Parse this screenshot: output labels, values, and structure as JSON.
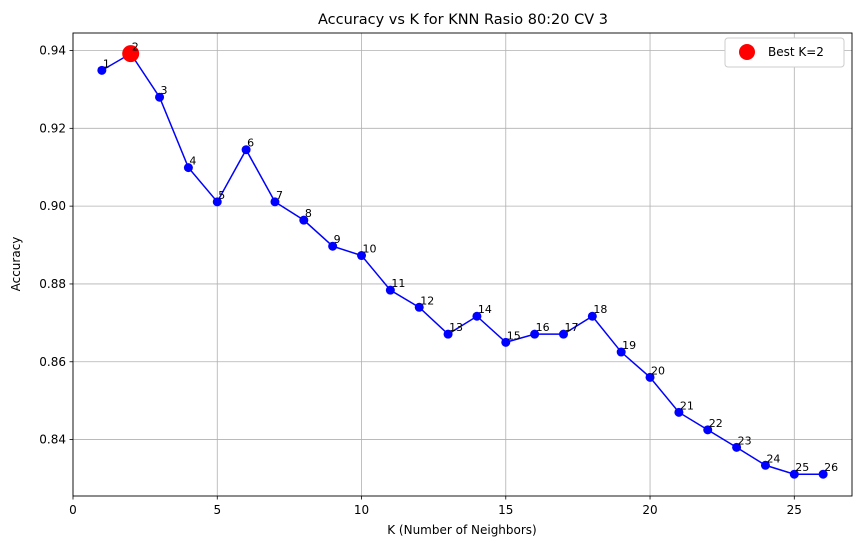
{
  "chart_data": {
    "type": "line",
    "title": "Accuracy vs K for KNN Rasio 80:20 CV 3",
    "xlabel": "K (Number of Neighbors)",
    "ylabel": "Accuracy",
    "xlim": [
      0,
      27
    ],
    "ylim": [
      0.8255,
      0.9445
    ],
    "xticks": [
      0,
      5,
      10,
      15,
      20,
      25
    ],
    "yticks": [
      0.84,
      0.86,
      0.88,
      0.9,
      0.92,
      0.94
    ],
    "xtick_labels": [
      "0",
      "5",
      "10",
      "15",
      "20",
      "25"
    ],
    "ytick_labels": [
      "0.84",
      "0.86",
      "0.88",
      "0.90",
      "0.92",
      "0.94"
    ],
    "grid": true,
    "series": [
      {
        "color": "#0000ff",
        "x": [
          1,
          2,
          3,
          4,
          5,
          6,
          7,
          8,
          9,
          10,
          11,
          12,
          13,
          14,
          15,
          16,
          17,
          18,
          19,
          20,
          21,
          22,
          23,
          24,
          25,
          26
        ],
        "y": [
          0.9349,
          0.9392,
          0.928,
          0.9099,
          0.9011,
          0.9145,
          0.9011,
          0.8964,
          0.8897,
          0.8873,
          0.8784,
          0.874,
          0.8671,
          0.8717,
          0.865,
          0.8671,
          0.8671,
          0.8717,
          0.8625,
          0.856,
          0.847,
          0.8425,
          0.838,
          0.8334,
          0.8311,
          0.8311
        ],
        "point_labels": [
          "1",
          "2",
          "3",
          "4",
          "5",
          "6",
          "7",
          "8",
          "9",
          "10",
          "11",
          "12",
          "13",
          "14",
          "15",
          "16",
          "17",
          "18",
          "19",
          "20",
          "21",
          "22",
          "23",
          "24",
          "25",
          "26"
        ]
      }
    ],
    "highlight": {
      "x": 2,
      "y": 0.9392,
      "color": "#ff0000"
    },
    "legend": {
      "position": "top-right",
      "label": "Best K=2",
      "color": "#ff0000"
    }
  }
}
